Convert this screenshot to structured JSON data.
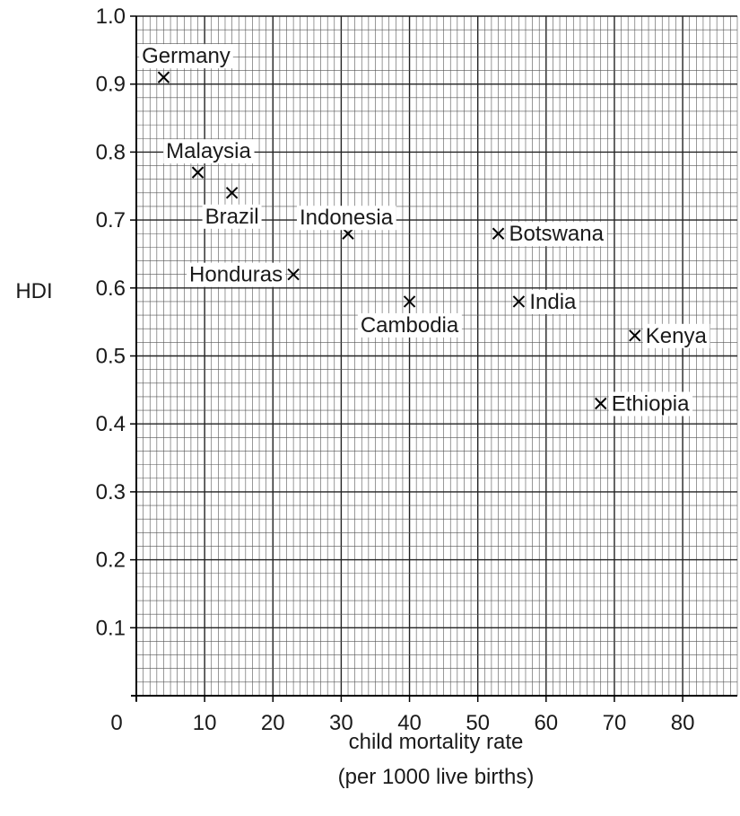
{
  "chart_data": {
    "type": "scatter",
    "xlabel_lines": [
      "child mortality rate",
      "(per 1000 live births)"
    ],
    "ylabel": "HDI",
    "xlim": [
      0,
      88
    ],
    "ylim": [
      0,
      1.0
    ],
    "x_ticks": [
      0,
      10,
      20,
      30,
      40,
      50,
      60,
      70,
      80
    ],
    "x_tick_labels": [
      "0",
      "10",
      "20",
      "30",
      "40",
      "50",
      "60",
      "70",
      "80"
    ],
    "y_ticks": [
      0.1,
      0.2,
      0.3,
      0.4,
      0.5,
      0.6,
      0.7,
      0.8,
      0.9,
      1.0
    ],
    "y_tick_labels": [
      "0.1",
      "0.2",
      "0.3",
      "0.4",
      "0.5",
      "0.6",
      "0.7",
      "0.8",
      "0.9",
      "1.0"
    ],
    "grid": true,
    "marker": "x",
    "points": [
      {
        "label": "Germany",
        "x": 4,
        "y": 0.91,
        "label_pos": "above"
      },
      {
        "label": "Malaysia",
        "x": 9,
        "y": 0.77,
        "label_pos": "above"
      },
      {
        "label": "Brazil",
        "x": 14,
        "y": 0.74,
        "label_pos": "below"
      },
      {
        "label": "Indonesia",
        "x": 31,
        "y": 0.68,
        "label_pos": "above"
      },
      {
        "label": "Honduras",
        "x": 23,
        "y": 0.62,
        "label_pos": "left"
      },
      {
        "label": "Botswana",
        "x": 53,
        "y": 0.68,
        "label_pos": "right"
      },
      {
        "label": "Cambodia",
        "x": 40,
        "y": 0.58,
        "label_pos": "below"
      },
      {
        "label": "India",
        "x": 56,
        "y": 0.58,
        "label_pos": "right"
      },
      {
        "label": "Kenya",
        "x": 73,
        "y": 0.53,
        "label_pos": "right"
      },
      {
        "label": "Ethiopia",
        "x": 68,
        "y": 0.43,
        "label_pos": "right"
      }
    ]
  }
}
